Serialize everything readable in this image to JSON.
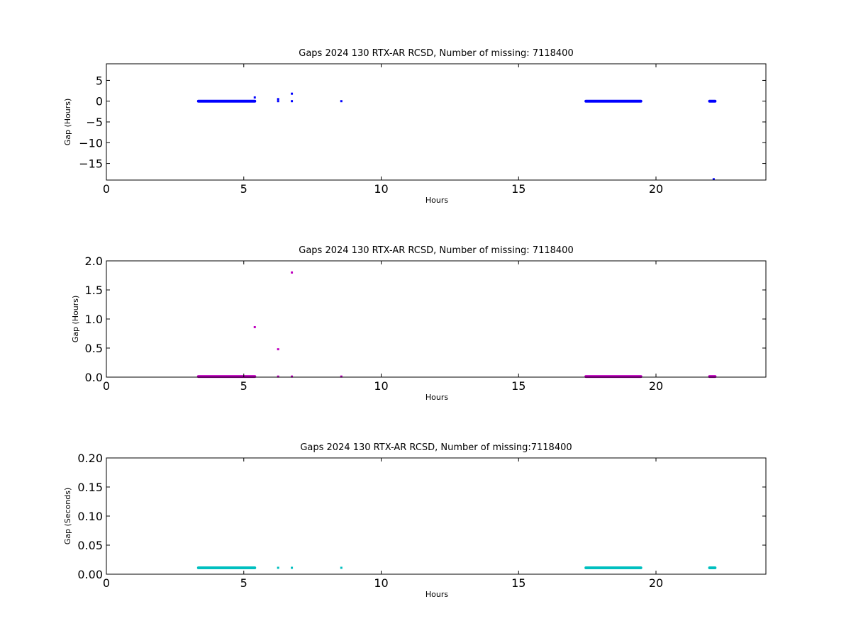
{
  "chart_data": [
    {
      "type": "scatter",
      "title": "Gaps 2024 130 RTX-AR  RCSD, Number of missing: 7118400",
      "xlabel": "Hours",
      "ylabel": "Gap (Hours)",
      "xlim": [
        0,
        24
      ],
      "ylim": [
        -19,
        9
      ],
      "xticks": [
        0,
        5,
        10,
        15,
        20
      ],
      "yticks": [
        5,
        0,
        -5,
        -10,
        -15
      ],
      "grid": false,
      "series": [
        {
          "color": "#0000ff",
          "segments": [
            {
              "x_start": 3.35,
              "x_end": 5.4,
              "y": 0
            },
            {
              "x_start": 17.45,
              "x_end": 19.45,
              "y": 0
            },
            {
              "x_start": 21.95,
              "x_end": 22.15,
              "y": 0
            }
          ],
          "points": [
            {
              "x": 5.4,
              "y": 0.9
            },
            {
              "x": 6.25,
              "y": 0.5
            },
            {
              "x": 6.25,
              "y": 0
            },
            {
              "x": 6.75,
              "y": 1.8
            },
            {
              "x": 6.75,
              "y": 0
            },
            {
              "x": 8.55,
              "y": 0
            },
            {
              "x": 22.1,
              "y": -18.8
            }
          ]
        }
      ]
    },
    {
      "type": "scatter",
      "title": "Gaps 2024 130 RTX-AR  RCSD, Number of missing: 7118400",
      "xlabel": "Hours",
      "ylabel": "Gap (Hours)",
      "xlim": [
        0,
        24
      ],
      "ylim": [
        0,
        2.0
      ],
      "xticks": [
        0,
        5,
        10,
        15,
        20
      ],
      "yticks": [
        "2.0",
        "1.5",
        "1.0",
        "0.5",
        "0.0"
      ],
      "grid": false,
      "series": [
        {
          "color": "#bf00bf",
          "segments": [
            {
              "x_start": 3.35,
              "x_end": 5.4,
              "y": 0.01
            },
            {
              "x_start": 17.45,
              "x_end": 19.45,
              "y": 0.01
            },
            {
              "x_start": 21.95,
              "x_end": 22.15,
              "y": 0.01
            }
          ],
          "points": [
            {
              "x": 5.4,
              "y": 0.86
            },
            {
              "x": 6.25,
              "y": 0.48
            },
            {
              "x": 6.25,
              "y": 0.01
            },
            {
              "x": 6.75,
              "y": 1.8
            },
            {
              "x": 6.75,
              "y": 0.01
            },
            {
              "x": 8.55,
              "y": 0.01
            }
          ]
        }
      ]
    },
    {
      "type": "scatter",
      "title": "Gaps 2024 130 RTX-AR  RCSD, Number of missing:7118400",
      "xlabel": "Hours",
      "ylabel": "Gap (Seconds)",
      "xlim": [
        0,
        24
      ],
      "ylim": [
        0,
        0.2
      ],
      "xticks": [
        0,
        5,
        10,
        15,
        20
      ],
      "yticks": [
        "0.20",
        "0.15",
        "0.10",
        "0.05",
        "0.00"
      ],
      "grid": false,
      "series": [
        {
          "color": "#00bfbf",
          "segments": [
            {
              "x_start": 3.35,
              "x_end": 5.4,
              "y": 0.011
            },
            {
              "x_start": 17.45,
              "x_end": 19.45,
              "y": 0.011
            },
            {
              "x_start": 21.95,
              "x_end": 22.15,
              "y": 0.011
            }
          ],
          "points": [
            {
              "x": 6.25,
              "y": 0.011
            },
            {
              "x": 6.75,
              "y": 0.011
            },
            {
              "x": 8.55,
              "y": 0.011
            }
          ]
        }
      ]
    }
  ]
}
